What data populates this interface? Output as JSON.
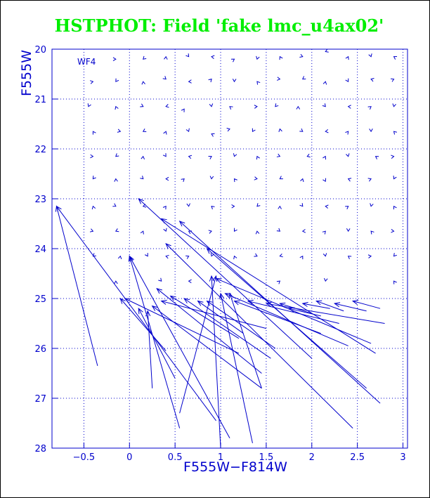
{
  "chart_data": {
    "type": "scatter",
    "title": "HSTPHOT: Field 'fake lmc_u4ax02'",
    "panel_label": "WF4",
    "xlabel": "F555W−F814W",
    "ylabel": "F555W",
    "xlim": [
      -0.85,
      3.05
    ],
    "ylim": [
      20,
      28
    ],
    "y_inverted": true,
    "xticks": [
      -0.5,
      0,
      0.5,
      1,
      1.5,
      2,
      2.5,
      3
    ],
    "xtick_labels": [
      "−0.5",
      "0",
      "0.5",
      "1",
      "1.5",
      "2",
      "2.5",
      "3"
    ],
    "yticks": [
      20,
      21,
      22,
      23,
      24,
      25,
      26,
      27,
      28
    ],
    "ytick_labels": [
      "20",
      "21",
      "22",
      "23",
      "24",
      "25",
      "26",
      "27",
      "28"
    ],
    "grid": true,
    "color": "#0000cc",
    "marker": "small chevron (input-output offset vector)",
    "points": [
      [
        -0.15,
        20.2
      ],
      [
        0.15,
        20.2
      ],
      [
        0.4,
        20.15
      ],
      [
        0.65,
        20.15
      ],
      [
        0.9,
        20.15
      ],
      [
        1.15,
        20.2
      ],
      [
        1.4,
        20.2
      ],
      [
        1.65,
        20.15
      ],
      [
        1.9,
        20.15
      ],
      [
        2.15,
        20.05
      ],
      [
        2.4,
        20.15
      ],
      [
        2.65,
        20.15
      ],
      [
        2.9,
        20.15
      ],
      [
        -0.4,
        20.65
      ],
      [
        -0.15,
        20.65
      ],
      [
        0.15,
        20.65
      ],
      [
        0.4,
        20.6
      ],
      [
        0.65,
        20.65
      ],
      [
        0.9,
        20.6
      ],
      [
        1.15,
        20.65
      ],
      [
        1.4,
        20.65
      ],
      [
        1.65,
        20.6
      ],
      [
        1.9,
        20.6
      ],
      [
        2.15,
        20.65
      ],
      [
        2.4,
        20.65
      ],
      [
        2.65,
        20.6
      ],
      [
        2.9,
        20.6
      ],
      [
        -0.45,
        21.15
      ],
      [
        -0.15,
        21.15
      ],
      [
        0.15,
        21.15
      ],
      [
        0.4,
        21.15
      ],
      [
        0.6,
        21.2
      ],
      [
        0.9,
        21.15
      ],
      [
        1.1,
        21.15
      ],
      [
        1.4,
        21.15
      ],
      [
        1.6,
        21.15
      ],
      [
        1.85,
        21.15
      ],
      [
        2.15,
        21.15
      ],
      [
        2.4,
        21.15
      ],
      [
        2.65,
        21.15
      ],
      [
        2.9,
        21.15
      ],
      [
        -0.4,
        21.65
      ],
      [
        -0.1,
        21.65
      ],
      [
        0.15,
        21.65
      ],
      [
        0.4,
        21.65
      ],
      [
        0.65,
        21.65
      ],
      [
        0.9,
        21.7
      ],
      [
        1.1,
        21.6
      ],
      [
        1.35,
        21.65
      ],
      [
        1.65,
        21.6
      ],
      [
        1.9,
        21.65
      ],
      [
        2.15,
        21.65
      ],
      [
        2.4,
        21.65
      ],
      [
        2.65,
        21.65
      ],
      [
        2.9,
        21.65
      ],
      [
        -0.4,
        22.15
      ],
      [
        -0.15,
        22.15
      ],
      [
        0.15,
        22.15
      ],
      [
        0.4,
        22.15
      ],
      [
        0.65,
        22.15
      ],
      [
        0.9,
        22.15
      ],
      [
        1.15,
        22.15
      ],
      [
        1.4,
        22.15
      ],
      [
        1.65,
        22.15
      ],
      [
        1.95,
        22.15
      ],
      [
        2.15,
        22.15
      ],
      [
        2.4,
        22.15
      ],
      [
        2.7,
        22.15
      ],
      [
        2.9,
        22.15
      ],
      [
        -0.4,
        22.6
      ],
      [
        -0.15,
        22.6
      ],
      [
        0.15,
        22.6
      ],
      [
        0.4,
        22.6
      ],
      [
        0.6,
        22.6
      ],
      [
        0.9,
        22.6
      ],
      [
        1.15,
        22.6
      ],
      [
        1.4,
        22.6
      ],
      [
        1.65,
        22.6
      ],
      [
        1.9,
        22.6
      ],
      [
        2.15,
        22.65
      ],
      [
        2.4,
        22.6
      ],
      [
        2.65,
        22.6
      ],
      [
        2.9,
        22.6
      ],
      [
        -0.4,
        23.15
      ],
      [
        -0.15,
        23.15
      ],
      [
        0.15,
        23.15
      ],
      [
        0.4,
        23.15
      ],
      [
        0.65,
        23.15
      ],
      [
        0.9,
        23.15
      ],
      [
        1.15,
        23.15
      ],
      [
        1.4,
        23.15
      ],
      [
        1.65,
        23.15
      ],
      [
        1.9,
        23.15
      ],
      [
        2.15,
        23.15
      ],
      [
        2.4,
        23.15
      ],
      [
        2.65,
        23.15
      ],
      [
        2.9,
        23.15
      ],
      [
        -0.4,
        23.65
      ],
      [
        -0.15,
        23.65
      ],
      [
        0.15,
        23.65
      ],
      [
        0.4,
        23.65
      ],
      [
        0.65,
        23.65
      ],
      [
        0.9,
        23.65
      ],
      [
        1.15,
        23.65
      ],
      [
        1.4,
        23.65
      ],
      [
        1.65,
        23.65
      ],
      [
        1.9,
        23.65
      ],
      [
        2.15,
        23.65
      ],
      [
        2.4,
        23.65
      ],
      [
        2.65,
        23.65
      ],
      [
        2.9,
        23.65
      ],
      [
        -0.4,
        24.15
      ],
      [
        -0.1,
        24.15
      ],
      [
        0.2,
        24.15
      ],
      [
        0.4,
        24.15
      ],
      [
        0.65,
        24.15
      ],
      [
        0.9,
        24.15
      ],
      [
        1.15,
        24.15
      ],
      [
        1.4,
        24.15
      ],
      [
        1.65,
        24.15
      ],
      [
        1.9,
        24.15
      ],
      [
        2.15,
        24.15
      ],
      [
        2.4,
        24.15
      ],
      [
        2.65,
        24.15
      ],
      [
        2.9,
        24.15
      ],
      [
        -0.15,
        24.65
      ],
      [
        0.35,
        24.65
      ],
      [
        0.65,
        24.65
      ],
      [
        1.65,
        24.65
      ],
      [
        2.15,
        24.65
      ],
      [
        2.9,
        24.65
      ]
    ],
    "arrows": [
      [
        -0.35,
        26.35,
        -0.8,
        23.15
      ],
      [
        0.95,
        27.45,
        -0.8,
        23.15
      ],
      [
        0.4,
        26.05,
        -0.1,
        25.0
      ],
      [
        1.2,
        26.1,
        -0.05,
        25.0
      ],
      [
        0.55,
        27.6,
        0.0,
        24.15
      ],
      [
        1.1,
        27.8,
        0.0,
        24.15
      ],
      [
        0.5,
        26.6,
        0.1,
        25.2
      ],
      [
        1.45,
        26.8,
        0.25,
        25.15
      ],
      [
        1.45,
        26.5,
        0.3,
        24.8
      ],
      [
        1.5,
        25.6,
        0.35,
        25.05
      ],
      [
        1.2,
        25.8,
        0.45,
        24.95
      ],
      [
        1.55,
        26.2,
        0.6,
        25.0
      ],
      [
        1.25,
        25.7,
        0.75,
        25.05
      ],
      [
        1.6,
        26.0,
        0.85,
        25.05
      ],
      [
        2.45,
        27.6,
        0.4,
        23.9
      ],
      [
        2.75,
        27.1,
        0.55,
        23.45
      ],
      [
        2.0,
        26.2,
        0.1,
        23.0
      ],
      [
        2.6,
        26.8,
        0.85,
        24.0
      ],
      [
        2.7,
        26.1,
        0.35,
        23.4
      ],
      [
        2.65,
        25.9,
        0.95,
        24.6
      ],
      [
        2.4,
        25.95,
        1.05,
        24.9
      ],
      [
        2.1,
        25.7,
        1.15,
        25.05
      ],
      [
        2.3,
        25.5,
        1.3,
        25.05
      ],
      [
        2.8,
        25.5,
        1.5,
        25.1
      ],
      [
        2.0,
        25.3,
        1.65,
        25.1
      ],
      [
        2.1,
        25.35,
        1.75,
        25.2
      ],
      [
        2.2,
        25.2,
        1.9,
        25.1
      ],
      [
        2.35,
        25.25,
        2.05,
        25.05
      ],
      [
        2.6,
        25.25,
        2.25,
        25.1
      ],
      [
        2.75,
        25.2,
        2.45,
        25.05
      ],
      [
        0.55,
        27.3,
        0.95,
        24.55
      ],
      [
        1.0,
        28.0,
        0.9,
        24.55
      ],
      [
        1.35,
        27.9,
        1.0,
        24.9
      ],
      [
        1.45,
        26.8,
        1.1,
        24.9
      ],
      [
        0.25,
        26.8,
        0.2,
        25.25
      ]
    ]
  }
}
